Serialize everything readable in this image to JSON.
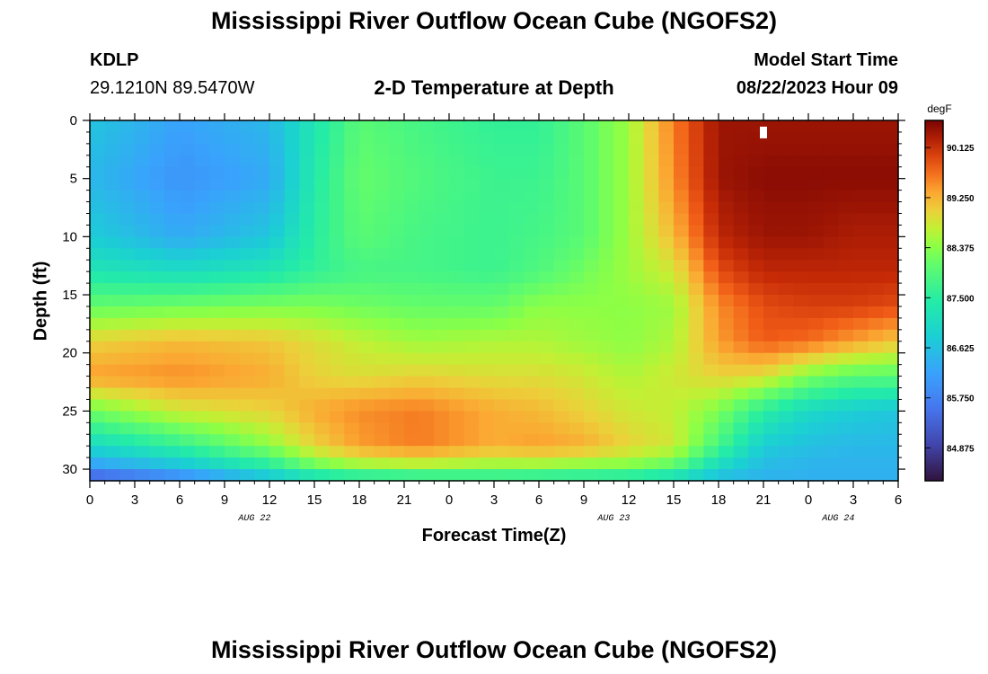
{
  "page": {
    "title_top": "Mississippi River Outflow Ocean Cube (NGOFS2)",
    "title_bottom": "Mississippi River Outflow Ocean Cube (NGOFS2)",
    "station_id": "KDLP",
    "station_coords": "29.1210N  89.5470W",
    "subtitle": "2-D Temperature at Depth",
    "model_start_label": "Model Start Time",
    "model_start_value": "08/22/2023 Hour 09"
  },
  "chart_data": {
    "type": "heatmap",
    "title": "2-D Temperature at Depth",
    "xlabel": "Forecast Time(Z)",
    "ylabel": "Depth (ft)",
    "x_ticks": [
      "0",
      "3",
      "6",
      "9",
      "12",
      "15",
      "18",
      "21",
      "0",
      "3",
      "6",
      "9",
      "12",
      "15",
      "18",
      "21",
      "0",
      "3",
      "6"
    ],
    "x_range_hours": [
      0,
      54
    ],
    "date_labels": [
      {
        "label": "AUG 22",
        "hour": 11
      },
      {
        "label": "AUG 23",
        "hour": 35
      },
      {
        "label": "AUG 24",
        "hour": 50
      }
    ],
    "y_ticks": [
      "0",
      "5",
      "10",
      "15",
      "20",
      "25",
      "30"
    ],
    "ylim": [
      0,
      31
    ],
    "y_inverted": true,
    "colorbar": {
      "unit": "degF",
      "ticks": [
        "90.125",
        "89.250",
        "88.375",
        "87.500",
        "86.625",
        "85.750",
        "84.875"
      ],
      "range": [
        84.3,
        90.6
      ]
    },
    "marker": {
      "hour": 45,
      "depth_ft": 1
    },
    "grid": {
      "cols": 54,
      "rows": 31
    },
    "anchor_hours": [
      0,
      6,
      12,
      15,
      18,
      22,
      27,
      30,
      33,
      36,
      39,
      42,
      45,
      48,
      51,
      54
    ],
    "anchor_depths_ft": [
      0,
      5,
      10,
      13,
      16,
      19,
      22,
      25,
      28,
      30,
      31
    ],
    "temperature_degF": [
      [
        86.7,
        86.2,
        86.5,
        87.3,
        88.0,
        87.8,
        87.6,
        87.6,
        88.0,
        88.5,
        89.6,
        90.4,
        90.4,
        90.4,
        90.4,
        90.4
      ],
      [
        86.5,
        86.0,
        86.3,
        87.4,
        88.1,
        87.9,
        87.7,
        87.7,
        88.0,
        88.5,
        89.5,
        90.4,
        90.5,
        90.5,
        90.5,
        90.5
      ],
      [
        86.8,
        86.3,
        86.7,
        87.5,
        88.0,
        87.8,
        87.7,
        87.8,
        88.0,
        88.5,
        89.2,
        90.2,
        90.4,
        90.4,
        90.3,
        90.3
      ],
      [
        87.3,
        87.1,
        87.3,
        87.6,
        87.8,
        87.8,
        87.7,
        87.9,
        88.2,
        88.5,
        88.8,
        89.9,
        90.2,
        90.2,
        90.2,
        90.2
      ],
      [
        88.1,
        88.2,
        88.3,
        88.3,
        88.2,
        88.1,
        88.1,
        88.4,
        88.4,
        88.4,
        88.5,
        89.5,
        89.9,
        90.0,
        90.0,
        89.9
      ],
      [
        89.0,
        89.2,
        89.1,
        88.9,
        88.7,
        88.5,
        88.6,
        88.6,
        88.5,
        88.4,
        88.6,
        89.4,
        89.8,
        89.7,
        89.4,
        89.1
      ],
      [
        89.4,
        89.5,
        89.3,
        89.0,
        88.9,
        89.0,
        88.9,
        88.9,
        88.8,
        88.6,
        88.8,
        89.0,
        88.9,
        88.3,
        88.0,
        88.0
      ],
      [
        88.2,
        88.8,
        89.0,
        89.3,
        89.5,
        89.6,
        89.3,
        89.2,
        89.0,
        88.8,
        88.7,
        88.3,
        87.5,
        87.0,
        86.8,
        86.7
      ],
      [
        87.0,
        87.6,
        88.4,
        89.0,
        89.4,
        89.6,
        89.3,
        89.4,
        89.3,
        89.0,
        88.8,
        87.8,
        86.8,
        86.6,
        86.5,
        86.5
      ],
      [
        86.0,
        86.5,
        87.3,
        88.0,
        88.3,
        88.4,
        88.3,
        88.3,
        88.2,
        88.2,
        87.9,
        86.9,
        86.5,
        86.4,
        86.4,
        86.4
      ],
      [
        85.0,
        85.6,
        86.4,
        86.8,
        87.0,
        87.1,
        87.2,
        87.1,
        87.1,
        87.0,
        86.8,
        86.5,
        86.4,
        86.4,
        86.4,
        86.4
      ]
    ]
  }
}
